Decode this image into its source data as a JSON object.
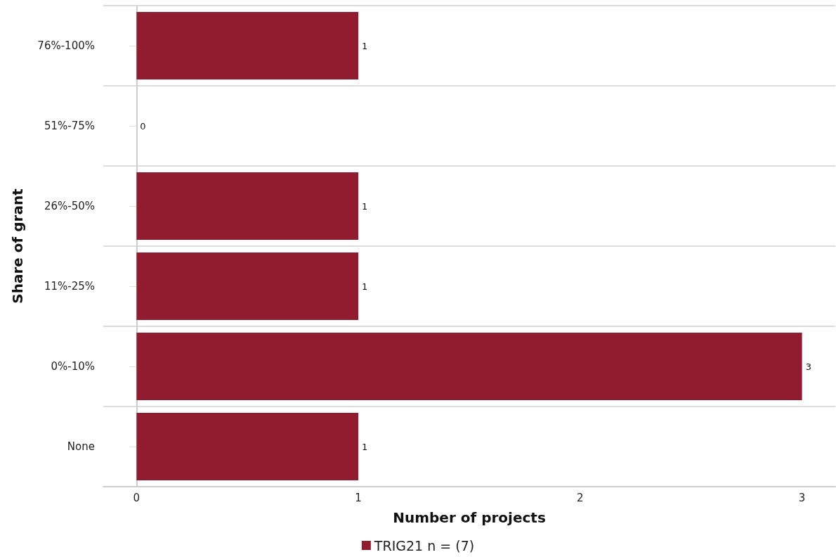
{
  "chart_data": {
    "type": "bar",
    "orientation": "horizontal",
    "xlabel": "Number of projects",
    "ylabel": "Share of grant",
    "categories": [
      "76%-100%",
      "51%-75%",
      "26%-50%",
      "11%-25%",
      "0%-10%",
      "None"
    ],
    "series": [
      {
        "name": "TRIG21 n = (7)",
        "color": "#921c2f",
        "values": [
          1,
          0,
          1,
          1,
          3,
          1
        ]
      }
    ],
    "xlim": [
      -0.15,
      3.15
    ],
    "xticks": [
      0,
      1,
      2,
      3
    ],
    "grid": "y",
    "legend": "bottom",
    "data_labels": true
  }
}
